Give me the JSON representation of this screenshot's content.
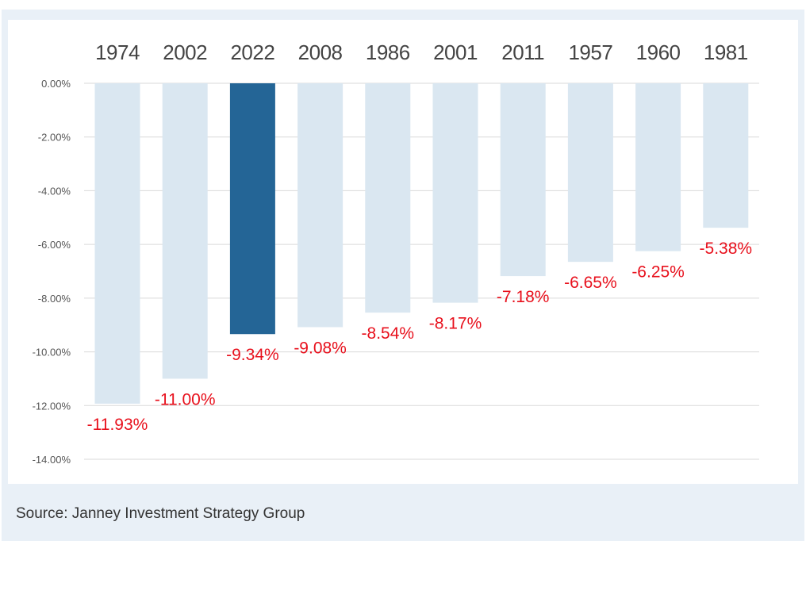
{
  "chart_data": {
    "type": "bar",
    "title": "",
    "xlabel": "",
    "ylabel": "",
    "categories": [
      "1974",
      "2002",
      "2022",
      "2008",
      "1986",
      "2001",
      "2011",
      "1957",
      "1960",
      "1981"
    ],
    "values": [
      -11.93,
      -11.0,
      -9.34,
      -9.08,
      -8.54,
      -8.17,
      -7.18,
      -6.65,
      -6.25,
      -5.38
    ],
    "value_labels": [
      "-11.93%",
      "-11.00%",
      "-9.34%",
      "-9.08%",
      "-8.54%",
      "-8.17%",
      "-7.18%",
      "-6.65%",
      "-6.25%",
      "-5.38%"
    ],
    "highlight_category": "2022",
    "ylim": [
      -14,
      0
    ],
    "yticks": [
      0,
      -2,
      -4,
      -6,
      -8,
      -10,
      -12,
      -14
    ],
    "ytick_labels": [
      "0.00%",
      "-2.00%",
      "-4.00%",
      "-6.00%",
      "-8.00%",
      "-10.00%",
      "-12.00%",
      "-14.00%"
    ],
    "grid": true,
    "legend": "none",
    "colors": {
      "bar": "#dae7f1",
      "highlight": "#246596",
      "value_label": "#e8101c",
      "grid": "#d9d9d9",
      "category_label": "#444444",
      "tick_label": "#555555"
    }
  },
  "footer": {
    "source": "Source: Janney Investment Strategy Group"
  }
}
